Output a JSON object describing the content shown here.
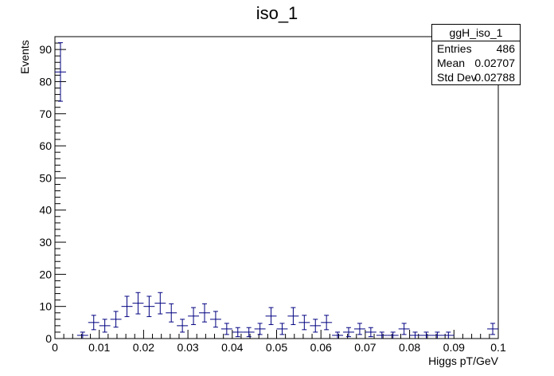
{
  "chart_data": {
    "type": "scatter",
    "title": "iso_1",
    "xlabel": "Higgs pT/GeV",
    "ylabel": "Events",
    "xlim": [
      0,
      0.1
    ],
    "ylim": [
      0,
      94
    ],
    "x_ticks": [
      "0",
      "0.01",
      "0.02",
      "0.03",
      "0.04",
      "0.05",
      "0.06",
      "0.07",
      "0.08",
      "0.09",
      "0.1"
    ],
    "y_ticks": [
      "0",
      "10",
      "20",
      "30",
      "40",
      "50",
      "60",
      "70",
      "80",
      "90"
    ],
    "bin_width": 0.0025,
    "x": [
      0.00125,
      0.00375,
      0.00625,
      0.00875,
      0.01125,
      0.01375,
      0.01625,
      0.01875,
      0.02125,
      0.02375,
      0.02625,
      0.02875,
      0.03125,
      0.03375,
      0.03625,
      0.03875,
      0.04125,
      0.04375,
      0.04625,
      0.04875,
      0.05125,
      0.05375,
      0.05625,
      0.05875,
      0.06125,
      0.06375,
      0.06625,
      0.06875,
      0.07125,
      0.07375,
      0.07625,
      0.07875,
      0.08125,
      0.08375,
      0.08625,
      0.08875,
      0.09125,
      0.09375,
      0.09625,
      0.09875
    ],
    "y": [
      83,
      0,
      1,
      5,
      4,
      6,
      10,
      11,
      10,
      11,
      8,
      4,
      7,
      8,
      6,
      3,
      2,
      2,
      3,
      7,
      3,
      7,
      5,
      4,
      5,
      1,
      2,
      3,
      2,
      1,
      1,
      3,
      1,
      1,
      1,
      1,
      0,
      0,
      0,
      3
    ],
    "series": [
      {
        "name": "ggH_iso_1",
        "color": "#000080"
      }
    ],
    "stats_box": {
      "name": "ggH_iso_1",
      "rows": [
        {
          "label": "Entries",
          "value": "486"
        },
        {
          "label": "Mean",
          "value": "0.02707"
        },
        {
          "label": "Std Dev",
          "value": "0.02788"
        }
      ]
    }
  }
}
